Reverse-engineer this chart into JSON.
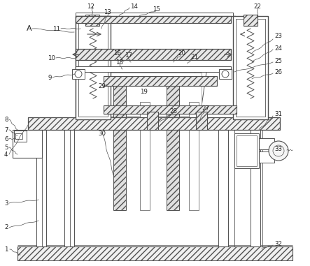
{
  "bg_color": "#ffffff",
  "line_color": "#505050",
  "figsize": [
    4.43,
    3.81
  ],
  "dpi": 100
}
